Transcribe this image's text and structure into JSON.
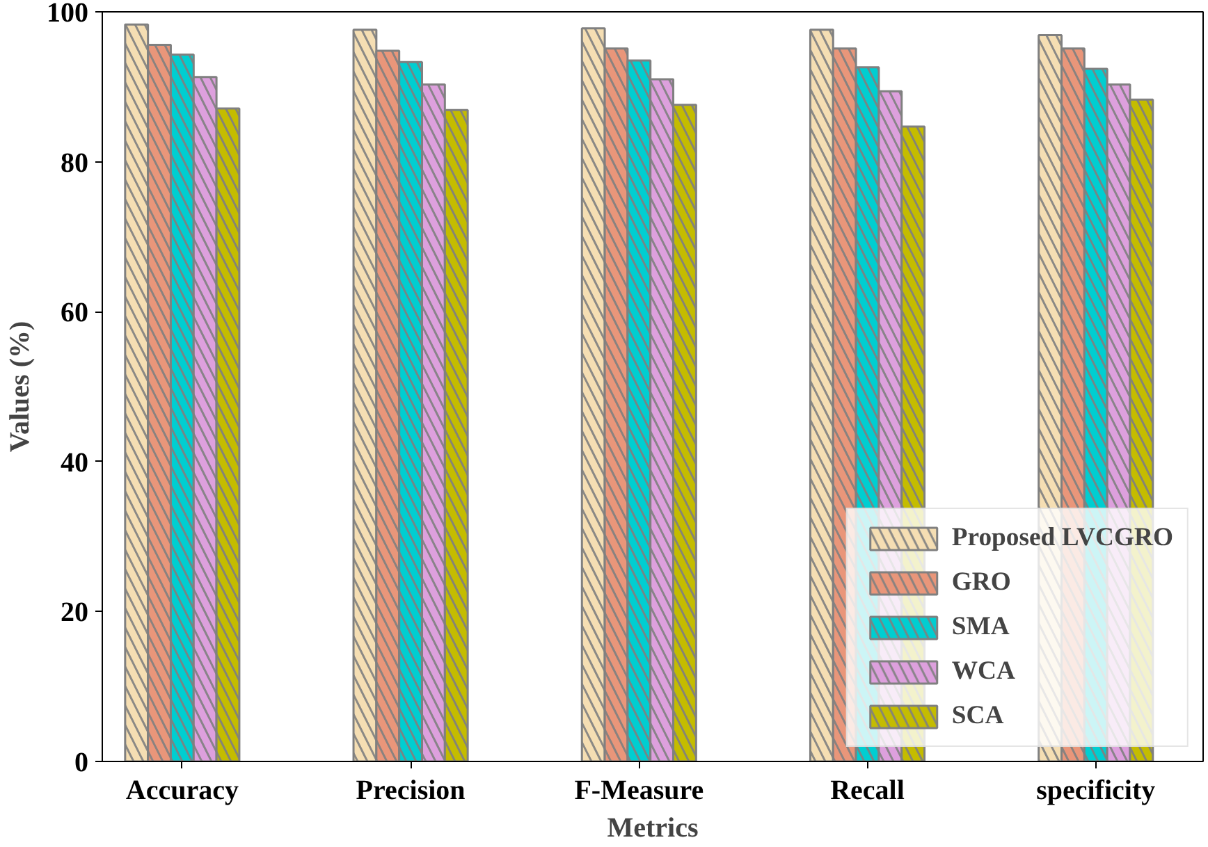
{
  "chart_data": {
    "type": "bar",
    "xlabel": "Metrics",
    "ylabel": "Values (%)",
    "categories": [
      "Accuracy",
      "Precision",
      "F-Measure",
      "Recall",
      "specificity"
    ],
    "series": [
      {
        "name": "Proposed LVCGRO",
        "color": "#f5deb3",
        "values": [
          98.3,
          97.6,
          97.8,
          97.6,
          96.9
        ]
      },
      {
        "name": "GRO",
        "color": "#e9967a",
        "values": [
          95.6,
          94.8,
          95.1,
          95.1,
          95.1
        ]
      },
      {
        "name": "SMA",
        "color": "#00ced1",
        "values": [
          94.3,
          93.3,
          93.5,
          92.6,
          92.4
        ]
      },
      {
        "name": "WCA",
        "color": "#dda0dd",
        "values": [
          91.3,
          90.3,
          91.0,
          89.4,
          90.3
        ]
      },
      {
        "name": "SCA",
        "color": "#c4bc00",
        "values": [
          87.1,
          86.9,
          87.6,
          84.7,
          88.3
        ]
      }
    ],
    "ylim": [
      0,
      100
    ],
    "yticks": [
      0,
      20,
      40,
      60,
      80,
      100
    ],
    "grid": false,
    "legend": "bottom right"
  }
}
